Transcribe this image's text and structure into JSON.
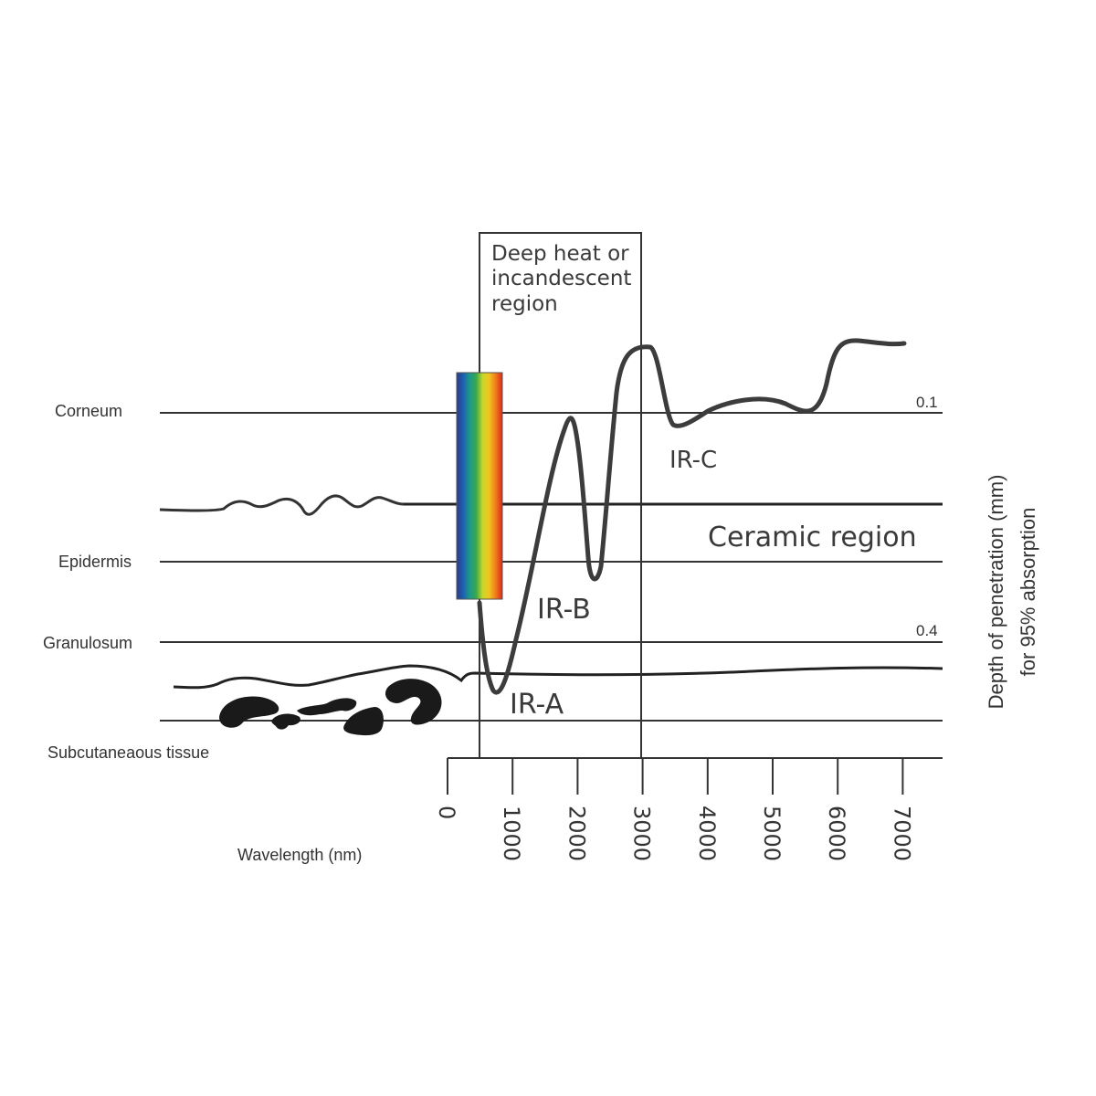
{
  "layers": {
    "corneum": "Corneum",
    "epidermis": "Epidermis",
    "granulosum": "Granulosum",
    "subcutaneous": "Subcutaneaous tissue"
  },
  "regions": {
    "deep_heat": [
      "Deep heat or",
      "incandescent",
      "region"
    ],
    "ceramic": "Ceramic region",
    "ir_a": "IR-A",
    "ir_b": "IR-B",
    "ir_c": "IR-C"
  },
  "depth_marks": {
    "top": "0.1",
    "bottom": "0.4"
  },
  "axes": {
    "x_title": "Wavelength (nm)",
    "y_title": [
      "Depth of penetration (mm)",
      "for 95% absorption"
    ],
    "x_ticks": [
      "0",
      "1000",
      "2000",
      "3000",
      "4000",
      "5000",
      "6000",
      "7000"
    ]
  },
  "colors": {
    "line": "#333333",
    "curve": "#3c3c3c",
    "spectrum": [
      "#2a3a8c",
      "#1f5fb0",
      "#1a9a8a",
      "#3aa84a",
      "#c8d82a",
      "#f3c21f",
      "#f07a1c",
      "#d92a1e"
    ]
  }
}
